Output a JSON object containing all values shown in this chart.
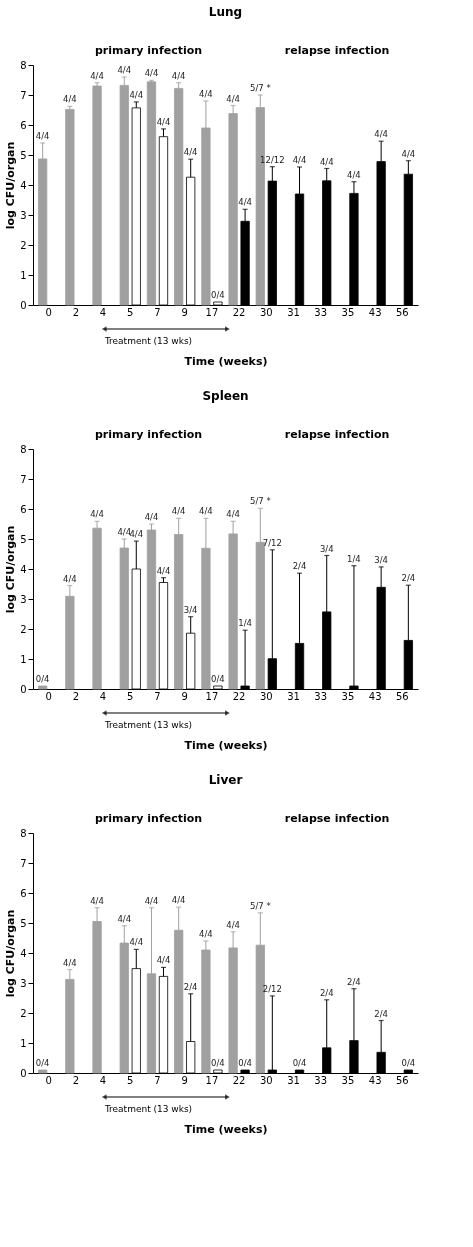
{
  "chart_data": [
    {
      "type": "bar",
      "title": "Lung",
      "xlabel": "Time (weeks)",
      "ylabel": "log CFU/organ",
      "annotations": [
        "primary infection",
        "relapse infection",
        "Treatment (13 wks)",
        {
          "text": "4/4",
          "x": "0",
          "y": 5.4
        },
        {
          "text": "4/4",
          "x": "2",
          "y": 6.62
        },
        {
          "text": "4/4",
          "x": "4",
          "y": 7.41
        },
        {
          "text": "4/4",
          "x": "5",
          "y": 7.6
        },
        {
          "text": "4/4",
          "x": "7",
          "y": 7.49
        },
        {
          "text": "4/4",
          "x": "9",
          "y": 7.41
        },
        {
          "text": "4/4",
          "x": "17",
          "y": 6.8
        },
        {
          "text": "4/4",
          "x": "22",
          "y": 6.65
        },
        {
          "text": "5/7 *",
          "x": "30",
          "y": 7.0
        },
        {
          "text": "4/4",
          "x": "5",
          "y": 6.77
        },
        {
          "text": "4/4",
          "x": "7",
          "y": 5.87
        },
        {
          "text": "4/4",
          "x": "9",
          "y": 4.86
        },
        {
          "text": "0/4",
          "x": "17",
          "y": 0.1
        },
        {
          "text": "4/4",
          "x": "22",
          "y": 3.19
        },
        {
          "text": "12/12",
          "x": "30",
          "y": 4.61
        },
        {
          "text": "4/4",
          "x": "31",
          "y": 4.6
        },
        {
          "text": "4/4",
          "x": "33",
          "y": 4.55
        },
        {
          "text": "4/4",
          "x": "35",
          "y": 4.11
        },
        {
          "text": "4/4",
          "x": "43",
          "y": 5.46
        },
        {
          "text": "4/4",
          "x": "56",
          "y": 4.81
        }
      ],
      "categories": [
        "0",
        "2",
        "4",
        "5",
        "7",
        "9",
        "17",
        "22",
        "30",
        "31",
        "33",
        "35",
        "43",
        "56"
      ],
      "ylim": [
        0,
        8
      ],
      "yticks": [
        0,
        1,
        2,
        3,
        4,
        5,
        6,
        7,
        8
      ],
      "grid": false,
      "series": [
        {
          "color": "#a0a0a0",
          "values": [
            4.87,
            6.52,
            7.3,
            7.32,
            7.44,
            7.22,
            5.9,
            6.38,
            6.58,
            null,
            null,
            null,
            null,
            null
          ],
          "errors": [
            [
              4.87,
              5.4
            ],
            [
              6.52,
              6.62
            ],
            [
              7.3,
              7.41
            ],
            [
              7.32,
              7.6
            ],
            [
              7.44,
              7.49
            ],
            [
              7.22,
              7.41
            ],
            [
              5.9,
              6.8
            ],
            [
              6.38,
              6.65
            ],
            [
              6.58,
              7.0
            ],
            null,
            null,
            null,
            null,
            null
          ]
        },
        {
          "color": "#ffffff",
          "values": [
            null,
            null,
            null,
            6.57,
            5.61,
            4.26,
            0.1,
            null,
            null,
            null,
            null,
            null,
            null,
            null
          ],
          "errors": [
            null,
            null,
            null,
            [
              6.57,
              6.77
            ],
            [
              5.61,
              5.87
            ],
            [
              4.26,
              4.86
            ],
            null,
            null,
            null,
            null,
            null,
            null,
            null,
            null
          ]
        },
        {
          "color": "#000000",
          "values": [
            null,
            null,
            null,
            null,
            null,
            null,
            null,
            2.79,
            4.13,
            3.7,
            4.14,
            3.72,
            4.78,
            4.36
          ],
          "errors": [
            null,
            null,
            null,
            null,
            null,
            null,
            null,
            [
              2.79,
              3.19
            ],
            [
              4.13,
              4.61
            ],
            [
              3.7,
              4.6
            ],
            [
              4.14,
              4.55
            ],
            [
              3.72,
              4.11
            ],
            [
              4.78,
              5.46
            ],
            [
              4.36,
              4.81
            ]
          ]
        }
      ]
    },
    {
      "type": "bar",
      "title": "Spleen",
      "xlabel": "Time (weeks)",
      "ylabel": "log CFU/organ",
      "annotations": [
        "primary infection",
        "relapse infection",
        "Treatment (13 wks)",
        {
          "text": "0/4",
          "x": "0",
          "y": 0.1
        },
        {
          "text": "4/4",
          "x": "2",
          "y": 3.45
        },
        {
          "text": "4/4",
          "x": "4",
          "y": 5.59
        },
        {
          "text": "4/4",
          "x": "5",
          "y": 5.0
        },
        {
          "text": "4/4",
          "x": "7",
          "y": 5.5
        },
        {
          "text": "4/4",
          "x": "9",
          "y": 5.69
        },
        {
          "text": "4/4",
          "x": "17",
          "y": 5.69
        },
        {
          "text": "4/4",
          "x": "22",
          "y": 5.59
        },
        {
          "text": "5/7 *",
          "x": "30",
          "y": 6.02
        },
        {
          "text": "4/4",
          "x": "5",
          "y": 4.93
        },
        {
          "text": "4/4",
          "x": "7",
          "y": 3.71
        },
        {
          "text": "3/4",
          "x": "9",
          "y": 2.41
        },
        {
          "text": "0/4",
          "x": "17",
          "y": 0.1
        },
        {
          "text": "1/4",
          "x": "22",
          "y": 1.96
        },
        {
          "text": "7/12",
          "x": "30",
          "y": 4.64
        },
        {
          "text": "2/4",
          "x": "31",
          "y": 3.86
        },
        {
          "text": "3/4",
          "x": "33",
          "y": 4.45
        },
        {
          "text": "1/4",
          "x": "35",
          "y": 4.11
        },
        {
          "text": "3/4",
          "x": "43",
          "y": 4.07
        },
        {
          "text": "2/4",
          "x": "56",
          "y": 3.46
        }
      ],
      "categories": [
        "0",
        "2",
        "4",
        "5",
        "7",
        "9",
        "17",
        "22",
        "30",
        "31",
        "33",
        "35",
        "43",
        "56"
      ],
      "ylim": [
        0,
        8
      ],
      "yticks": [
        0,
        1,
        2,
        3,
        4,
        5,
        6,
        7,
        8
      ],
      "grid": false,
      "series": [
        {
          "color": "#a0a0a0",
          "values": [
            0.1,
            3.09,
            5.36,
            4.7,
            5.3,
            5.15,
            4.69,
            5.17,
            4.89,
            null,
            null,
            null,
            null,
            null
          ],
          "errors": [
            null,
            [
              3.09,
              3.45
            ],
            [
              5.36,
              5.59
            ],
            [
              4.7,
              5.0
            ],
            [
              5.3,
              5.5
            ],
            [
              5.15,
              5.69
            ],
            [
              4.69,
              5.69
            ],
            [
              5.17,
              5.59
            ],
            [
              4.89,
              6.02
            ],
            null,
            null,
            null,
            null,
            null
          ]
        },
        {
          "color": "#ffffff",
          "values": [
            null,
            null,
            null,
            4.0,
            3.55,
            1.86,
            0.1,
            null,
            null,
            null,
            null,
            null,
            null,
            null
          ],
          "errors": [
            null,
            null,
            null,
            [
              4.0,
              4.93
            ],
            [
              3.55,
              3.71
            ],
            [
              1.86,
              2.41
            ],
            null,
            null,
            null,
            null,
            null,
            null,
            null,
            null
          ]
        },
        {
          "color": "#000000",
          "values": [
            null,
            null,
            null,
            null,
            null,
            null,
            null,
            0.1,
            1.01,
            1.52,
            2.57,
            0.1,
            3.39,
            1.62
          ],
          "errors": [
            null,
            null,
            null,
            null,
            null,
            null,
            null,
            [
              0.1,
              1.96
            ],
            [
              1.01,
              4.64
            ],
            [
              1.52,
              3.86
            ],
            [
              2.57,
              4.45
            ],
            [
              0.1,
              4.11
            ],
            [
              3.39,
              4.07
            ],
            [
              1.62,
              3.46
            ]
          ]
        }
      ]
    },
    {
      "type": "bar",
      "title": "Liver",
      "xlabel": "Time (weeks)",
      "ylabel": "log CFU/organ",
      "annotations": [
        "primary infection",
        "relapse infection",
        "Treatment (13 wks)",
        {
          "text": "0/4",
          "x": "0",
          "y": 0.1
        },
        {
          "text": "4/4",
          "x": "2",
          "y": 3.45
        },
        {
          "text": "4/4",
          "x": "4",
          "y": 5.51
        },
        {
          "text": "4/4",
          "x": "5",
          "y": 4.91
        },
        {
          "text": "4/4",
          "x": "7",
          "y": 5.51
        },
        {
          "text": "4/4",
          "x": "9",
          "y": 5.53
        },
        {
          "text": "4/4",
          "x": "17",
          "y": 4.4
        },
        {
          "text": "4/4",
          "x": "22",
          "y": 4.71
        },
        {
          "text": "5/7 *",
          "x": "30",
          "y": 5.34
        },
        {
          "text": "4/4",
          "x": "5",
          "y": 4.12
        },
        {
          "text": "4/4",
          "x": "7",
          "y": 3.52
        },
        {
          "text": "2/4",
          "x": "9",
          "y": 2.64
        },
        {
          "text": "0/4",
          "x": "17",
          "y": 0.1
        },
        {
          "text": "0/4",
          "x": "22",
          "y": 0.1
        },
        {
          "text": "2/12",
          "x": "30",
          "y": 2.57
        },
        {
          "text": "0/4",
          "x": "31",
          "y": 0.1
        },
        {
          "text": "2/4",
          "x": "33",
          "y": 2.44
        },
        {
          "text": "2/4",
          "x": "35",
          "y": 2.81
        },
        {
          "text": "2/4",
          "x": "43",
          "y": 1.75
        },
        {
          "text": "0/4",
          "x": "56",
          "y": 0.1
        }
      ],
      "categories": [
        "0",
        "2",
        "4",
        "5",
        "7",
        "9",
        "17",
        "22",
        "30",
        "31",
        "33",
        "35",
        "43",
        "56"
      ],
      "ylim": [
        0,
        8
      ],
      "yticks": [
        0,
        1,
        2,
        3,
        4,
        5,
        6,
        7,
        8
      ],
      "grid": false,
      "series": [
        {
          "color": "#a0a0a0",
          "values": [
            0.1,
            3.12,
            5.05,
            4.33,
            3.31,
            4.76,
            4.1,
            4.17,
            4.26,
            null,
            null,
            null,
            null,
            null
          ],
          "errors": [
            null,
            [
              3.12,
              3.45
            ],
            [
              5.05,
              5.51
            ],
            [
              4.33,
              4.91
            ],
            [
              3.31,
              5.51
            ],
            [
              4.76,
              5.53
            ],
            [
              4.1,
              4.4
            ],
            [
              4.17,
              4.71
            ],
            [
              4.26,
              5.34
            ],
            null,
            null,
            null,
            null,
            null
          ]
        },
        {
          "color": "#ffffff",
          "values": [
            null,
            null,
            null,
            3.48,
            3.22,
            1.05,
            0.1,
            null,
            null,
            null,
            null,
            null,
            null,
            null
          ],
          "errors": [
            null,
            null,
            null,
            [
              3.48,
              4.12
            ],
            [
              3.22,
              3.52
            ],
            [
              1.05,
              2.64
            ],
            null,
            null,
            null,
            null,
            null,
            null,
            null,
            null
          ]
        },
        {
          "color": "#000000",
          "values": [
            null,
            null,
            null,
            null,
            null,
            null,
            null,
            0.1,
            0.1,
            0.1,
            0.84,
            1.08,
            0.69,
            0.1
          ],
          "errors": [
            null,
            null,
            null,
            null,
            null,
            null,
            null,
            null,
            [
              0.1,
              2.57
            ],
            null,
            [
              0.84,
              2.44
            ],
            [
              1.08,
              2.81
            ],
            [
              0.69,
              1.75
            ],
            null
          ]
        }
      ]
    }
  ]
}
